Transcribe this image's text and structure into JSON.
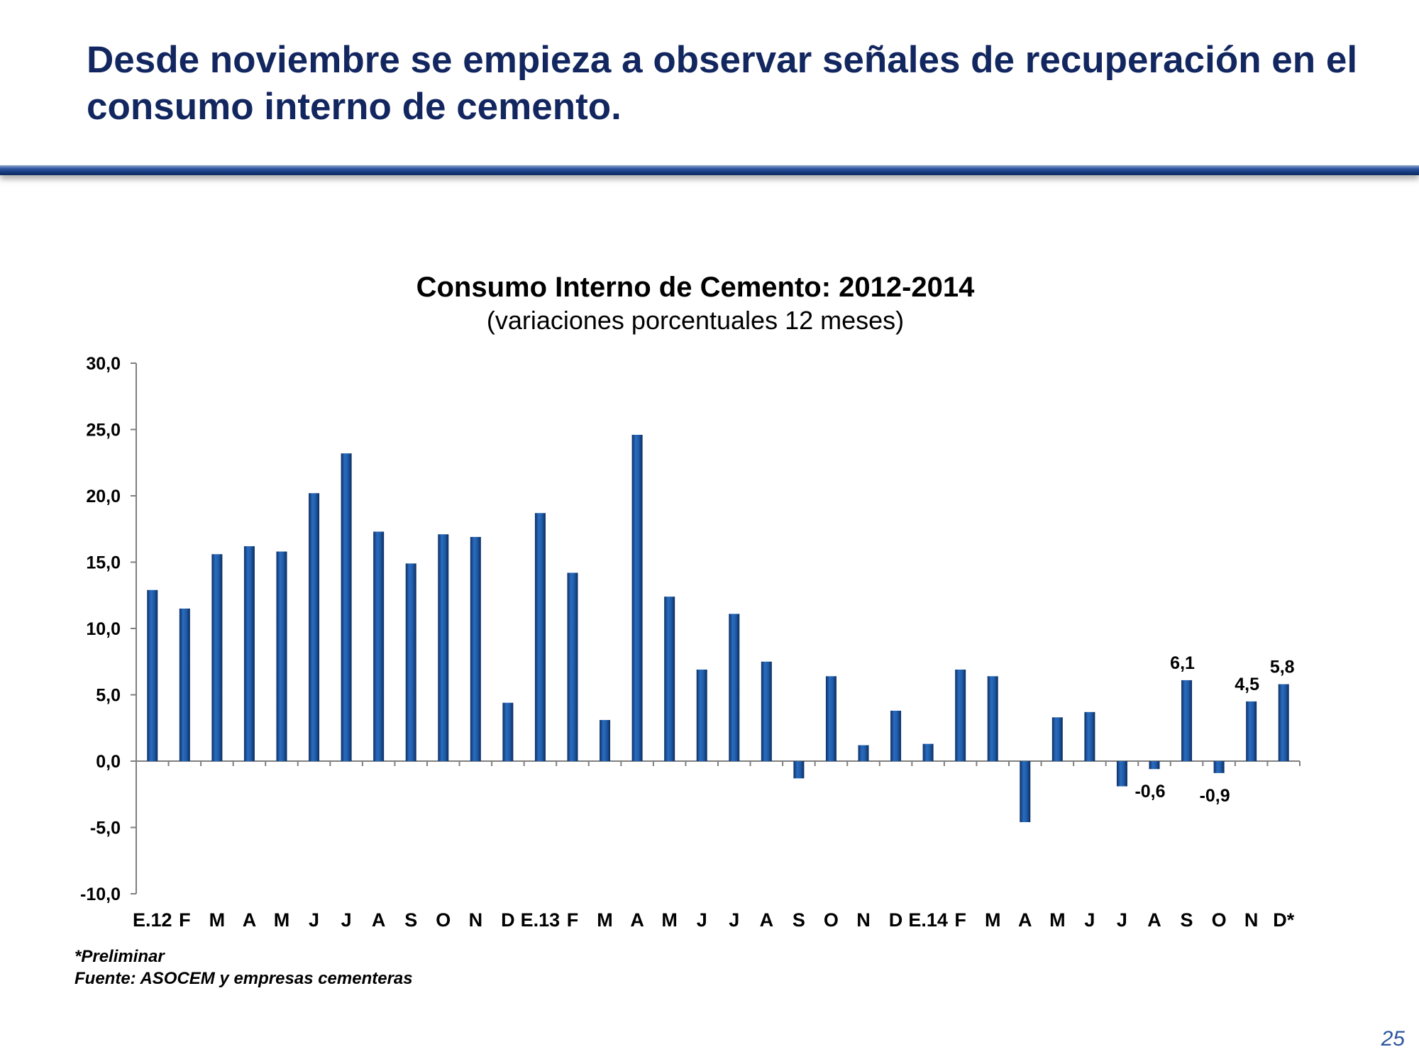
{
  "slide": {
    "title": "Desde noviembre se empieza a observar señales de recuperación en el consumo interno de cemento.",
    "page_number": "25",
    "footnote_preliminar": "*Preliminar",
    "footnote_source": "Fuente: ASOCEM y empresas cementeras",
    "accent_color": "#12265f",
    "rule_color": "#1f4a93",
    "bar_color": "#1f5ca8"
  },
  "chart_data": {
    "type": "bar",
    "title": "Consumo Interno de Cemento: 2012-2014",
    "subtitle": "(variaciones porcentuales 12 meses)",
    "xlabel": "",
    "ylabel": "",
    "ylim": [
      -10,
      30
    ],
    "yticks": [
      "30,0",
      "25,0",
      "20,0",
      "15,0",
      "10,0",
      "5,0",
      "0,0",
      "-5,0",
      "-10,0"
    ],
    "ytick_values": [
      30,
      25,
      20,
      15,
      10,
      5,
      0,
      -5,
      -10
    ],
    "categories": [
      "E.12",
      "F",
      "M",
      "A",
      "M",
      "J",
      "J",
      "A",
      "S",
      "O",
      "N",
      "D",
      "E.13",
      "F",
      "M",
      "A",
      "M",
      "J",
      "J",
      "A",
      "S",
      "O",
      "N",
      "D",
      "E.14",
      "F",
      "M",
      "A",
      "M",
      "J",
      "J",
      "A",
      "S",
      "O",
      "N",
      "D*"
    ],
    "values": [
      12.9,
      11.5,
      15.6,
      16.2,
      15.8,
      20.2,
      23.2,
      17.3,
      14.9,
      17.1,
      16.9,
      4.4,
      18.7,
      14.2,
      3.1,
      24.6,
      12.4,
      6.9,
      11.1,
      7.5,
      -1.3,
      6.4,
      1.2,
      3.8,
      1.3,
      6.9,
      6.4,
      -4.6,
      3.3,
      3.7,
      -1.9,
      -0.6,
      6.1,
      -0.9,
      4.5,
      5.8
    ],
    "data_labels": [
      {
        "index": 31,
        "text": "-0,6"
      },
      {
        "index": 32,
        "text": "6,1"
      },
      {
        "index": 33,
        "text": "-0,9"
      },
      {
        "index": 34,
        "text": "4,5"
      },
      {
        "index": 35,
        "text": "5,8"
      }
    ],
    "grid": false,
    "legend": "none",
    "series_color": "#1f5ca8"
  }
}
